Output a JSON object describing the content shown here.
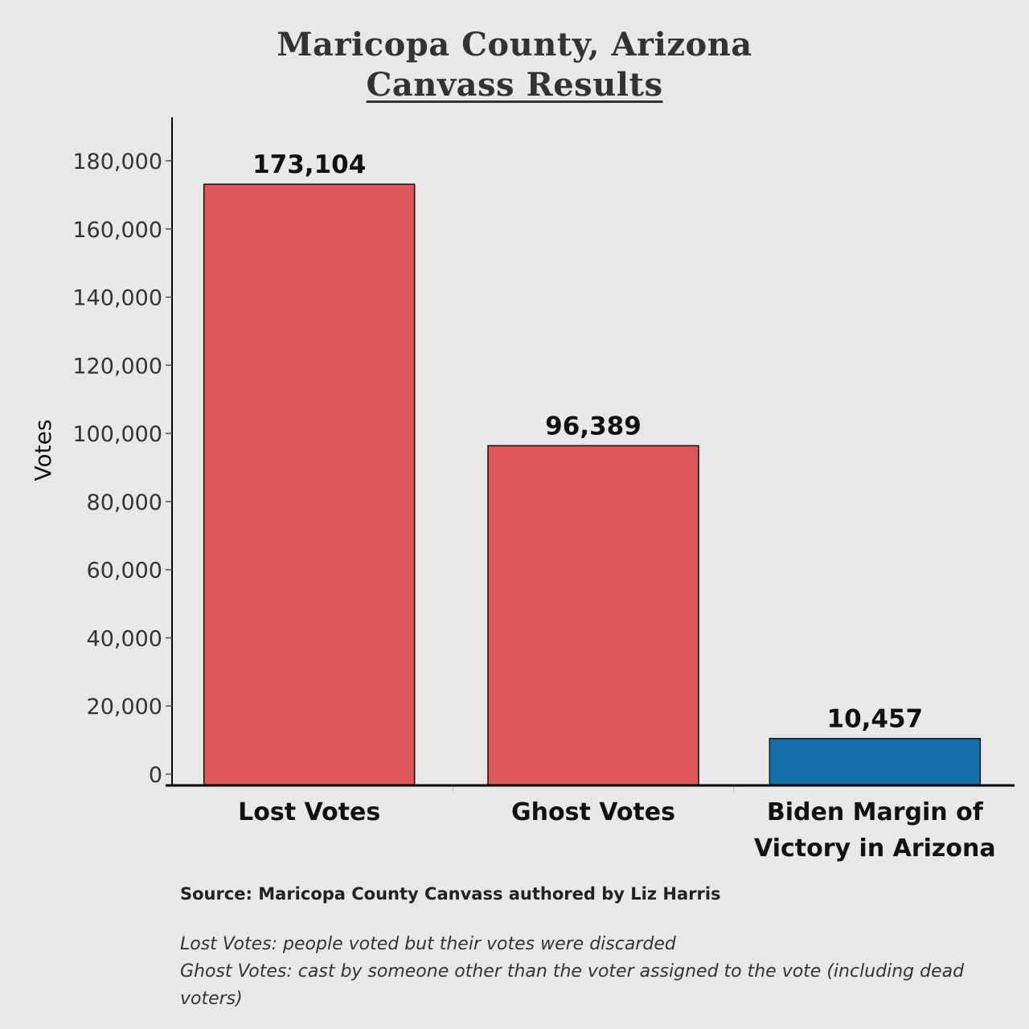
{
  "title": {
    "line1": "Maricopa County, Arizona",
    "line2": "Canvass Results"
  },
  "chart_data": {
    "type": "bar",
    "categories": [
      [
        "Lost Votes"
      ],
      [
        "Ghost Votes"
      ],
      [
        "Biden Margin of",
        "Victory in Arizona"
      ]
    ],
    "values": [
      173104,
      96389,
      10457
    ],
    "value_labels": [
      "173,104",
      "96,389",
      "10,457"
    ],
    "bar_colors": [
      "#e05759",
      "#e05759",
      "#1570aa"
    ],
    "ylabel": "Votes",
    "xlabel": "",
    "ylim": [
      0,
      192000
    ],
    "yticks": [
      0,
      20000,
      40000,
      60000,
      80000,
      100000,
      120000,
      140000,
      160000,
      180000
    ],
    "ytick_labels": [
      "0",
      "20,000",
      "40,000",
      "60,000",
      "80,000",
      "100,000",
      "120,000",
      "140,000",
      "160,000",
      "180,000"
    ],
    "grid": false
  },
  "notes": {
    "source": "Source: Maricopa County Canvass authored by Liz Harris",
    "definitions": [
      "Lost Votes: people voted but their votes were discarded",
      "Ghost Votes: cast by someone other than the voter assigned to the vote (including dead",
      "voters)"
    ]
  }
}
